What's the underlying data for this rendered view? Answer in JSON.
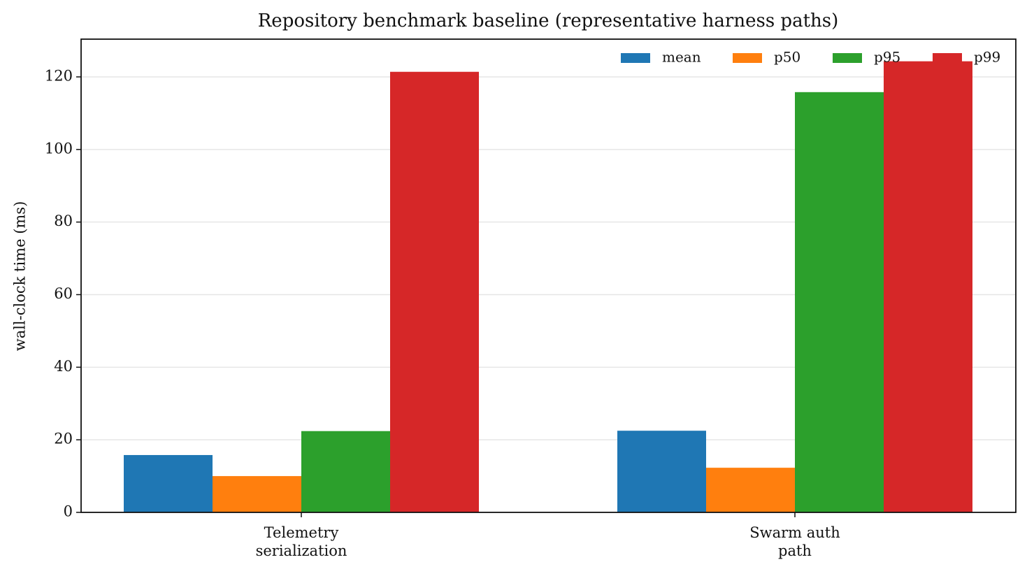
{
  "chart_data": {
    "type": "bar",
    "title": "Repository benchmark baseline (representative harness paths)",
    "y_label": "wall-clock time (ms)",
    "categories": [
      "Telemetry\nserialization",
      "Swarm auth\npath"
    ],
    "series": [
      {
        "name": "mean",
        "color": "#1f77b4",
        "values": [
          15.8,
          22.5
        ]
      },
      {
        "name": "p50",
        "color": "#ff7f0e",
        "values": [
          10.0,
          12.3
        ]
      },
      {
        "name": "p95",
        "color": "#2ca02c",
        "values": [
          22.4,
          115.8
        ]
      },
      {
        "name": "p99",
        "color": "#d62728",
        "values": [
          121.4,
          124.3
        ]
      }
    ],
    "ylim": [
      0,
      130.4
    ],
    "yticks": [
      0,
      20,
      40,
      60,
      80,
      100,
      120
    ],
    "grid": true,
    "legend": "upper right"
  }
}
